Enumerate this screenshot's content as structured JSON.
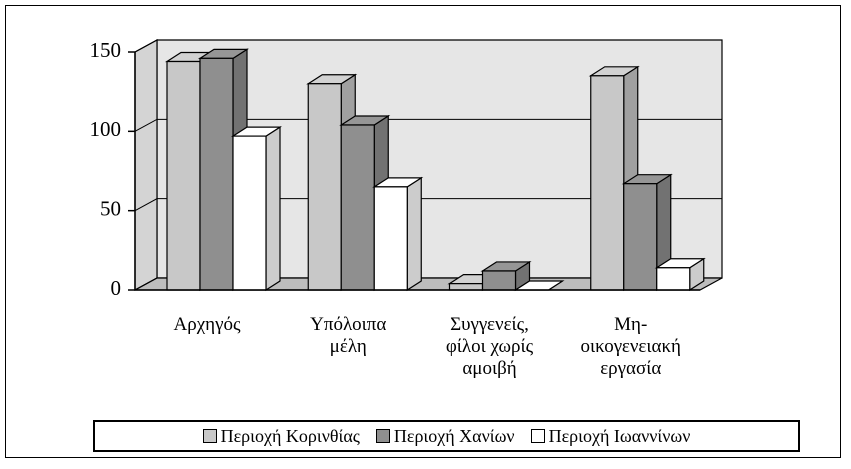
{
  "chart_data": {
    "type": "bar3d",
    "categories": [
      "Αρχηγός",
      "Υπόλοιπα\nμέλη",
      "Συγγενείς,\nφίλοι χωρίς\nαμοιβή",
      "Μη-\nοικογενειακή\nεργασία"
    ],
    "series": [
      {
        "name": "Περιοχή Κορινθίας",
        "color": "#c8c8c8",
        "values": [
          144,
          130,
          4,
          135
        ]
      },
      {
        "name": "Περιοχή Χανίων",
        "color": "#8f8f8f",
        "values": [
          146,
          104,
          12,
          67
        ]
      },
      {
        "name": "Περιοχή Ιωαννίνων",
        "color": "#ffffff",
        "values": [
          97,
          65,
          0,
          14
        ]
      }
    ],
    "ylim": [
      0,
      150
    ],
    "yticks": [
      0,
      50,
      100,
      150
    ],
    "grid": true,
    "legend": "bottom"
  }
}
